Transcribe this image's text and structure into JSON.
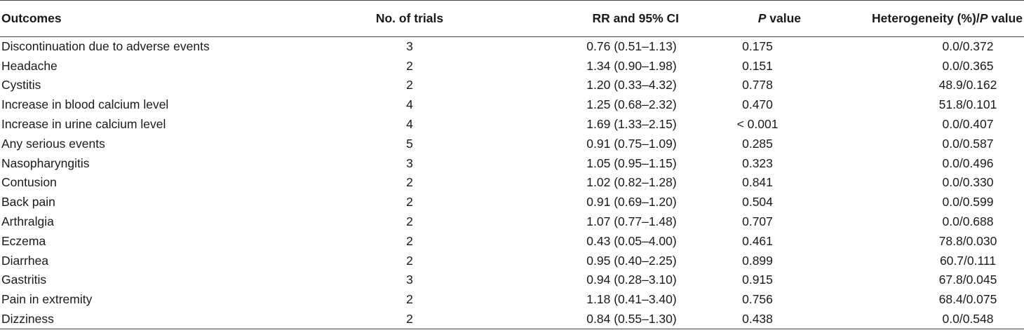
{
  "header": {
    "outcomes": "Outcomes",
    "trials": "No. of trials",
    "rr": "RR and 95% CI",
    "p_italic": "P",
    "p_rest": " value",
    "het_prefix": "Heterogeneity (%)/",
    "het_italic": "P",
    "het_suffix": " value"
  },
  "rows": [
    {
      "outcome": "Discontinuation due to adverse events",
      "trials": "3",
      "rr": "0.76 (0.51–1.13)",
      "p": "0.175",
      "het": "0.0/0.372"
    },
    {
      "outcome": "Headache",
      "trials": "2",
      "rr": "1.34 (0.90–1.98)",
      "p": "0.151",
      "het": "0.0/0.365"
    },
    {
      "outcome": "Cystitis",
      "trials": "2",
      "rr": "1.20 (0.33–4.32)",
      "p": "0.778",
      "het": "48.9/0.162"
    },
    {
      "outcome": "Increase in blood calcium level",
      "trials": "4",
      "rr": "1.25 (0.68–2.32)",
      "p": "0.470",
      "het": "51.8/0.101"
    },
    {
      "outcome": "Increase in urine calcium level",
      "trials": "4",
      "rr": "1.69 (1.33–2.15)",
      "p": "< 0.001",
      "het": "0.0/0.407"
    },
    {
      "outcome": "Any serious events",
      "trials": "5",
      "rr": "0.91 (0.75–1.09)",
      "p": "0.285",
      "het": "0.0/0.587"
    },
    {
      "outcome": "Nasopharyngitis",
      "trials": "3",
      "rr": "1.05 (0.95–1.15)",
      "p": "0.323",
      "het": "0.0/0.496"
    },
    {
      "outcome": "Contusion",
      "trials": "2",
      "rr": "1.02 (0.82–1.28)",
      "p": "0.841",
      "het": "0.0/0.330"
    },
    {
      "outcome": "Back pain",
      "trials": "2",
      "rr": "0.91 (0.69–1.20)",
      "p": "0.504",
      "het": "0.0/0.599"
    },
    {
      "outcome": "Arthralgia",
      "trials": "2",
      "rr": "1.07 (0.77–1.48)",
      "p": "0.707",
      "het": "0.0/0.688"
    },
    {
      "outcome": "Eczema",
      "trials": "2",
      "rr": "0.43 (0.05–4.00)",
      "p": "0.461",
      "het": "78.8/0.030"
    },
    {
      "outcome": "Diarrhea",
      "trials": "2",
      "rr": "0.95 (0.40–2.25)",
      "p": "0.899",
      "het": "60.7/0.111"
    },
    {
      "outcome": "Gastritis",
      "trials": "3",
      "rr": "0.94 (0.28–3.10)",
      "p": "0.915",
      "het": "67.8/0.045"
    },
    {
      "outcome": "Pain in extremity",
      "trials": "2",
      "rr": "1.18 (0.41–3.40)",
      "p": "0.756",
      "het": "68.4/0.075"
    },
    {
      "outcome": "Dizziness",
      "trials": "2",
      "rr": "0.84 (0.55–1.30)",
      "p": "0.438",
      "het": "0.0/0.548"
    }
  ]
}
